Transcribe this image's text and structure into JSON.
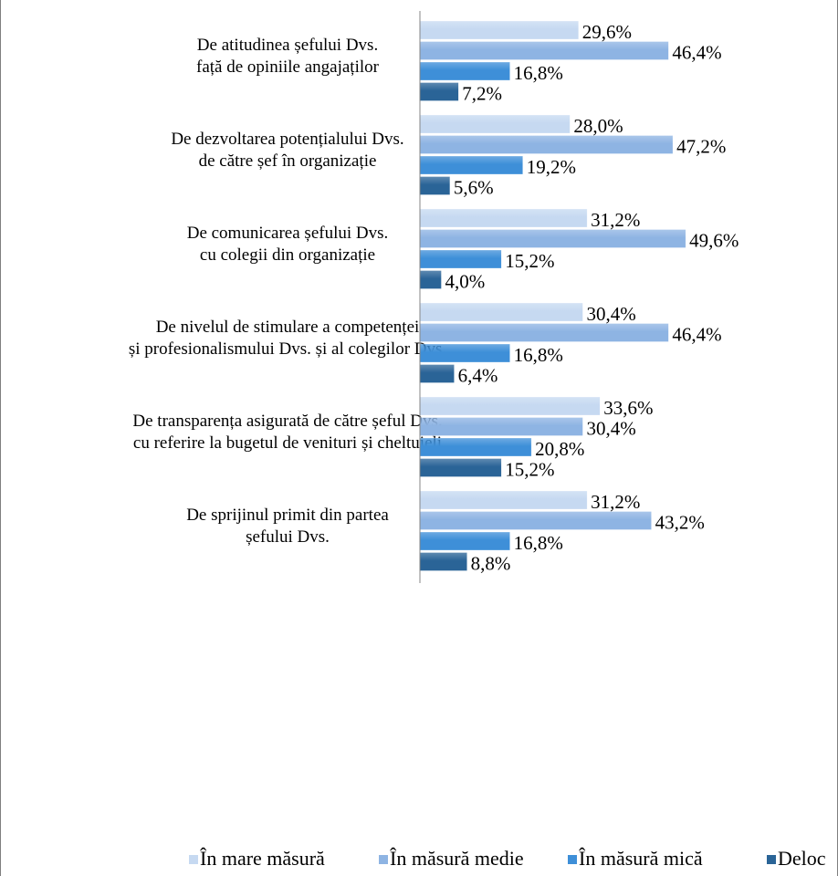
{
  "chart_data": {
    "type": "bar",
    "orientation": "horizontal",
    "categories": [
      [
        "De atitudinea șefului Dvs.",
        "față de opiniile angajaților"
      ],
      [
        "De dezvoltarea potențialului Dvs.",
        "de către șef în organizație"
      ],
      [
        "De comunicarea șefului Dvs.",
        "cu colegii din organizație"
      ],
      [
        "De nivelul de stimulare a competenței",
        "și profesionalismului Dvs. și al colegilor Dvs."
      ],
      [
        "De transparența asigurată de către șeful Dvs.",
        "cu referire la bugetul de venituri și cheltuieli"
      ],
      [
        "De sprijinul primit din partea",
        "șefului Dvs."
      ]
    ],
    "series": [
      {
        "name": "În mare măsură",
        "color": "#c6d9f1",
        "values": [
          29.6,
          28.0,
          31.2,
          30.4,
          33.6,
          31.2
        ],
        "labels": [
          "29,6%",
          "28,0%",
          "31,2%",
          "30,4%",
          "33,6%",
          "31,2%"
        ]
      },
      {
        "name": "În măsură medie",
        "color": "#8eb4e3",
        "values": [
          46.4,
          47.2,
          49.6,
          46.4,
          30.4,
          43.2
        ],
        "labels": [
          "46,4%",
          "47,2%",
          "49,6%",
          "46,4%",
          "30,4%",
          "43,2%"
        ]
      },
      {
        "name": "În măsură mică",
        "color": "#3e8fd8",
        "values": [
          16.8,
          19.2,
          15.2,
          16.8,
          20.8,
          16.8
        ],
        "labels": [
          "16,8%",
          "19,2%",
          "15,2%",
          "16,8%",
          "20,8%",
          "16,8%"
        ]
      },
      {
        "name": "Deloc",
        "color": "#2a6497",
        "values": [
          7.2,
          5.6,
          4.0,
          6.4,
          15.2,
          8.8
        ],
        "labels": [
          "7,2%",
          "5,6%",
          "4,0%",
          "6,4%",
          "15,2%",
          "8,8%"
        ]
      }
    ],
    "xlim": [
      0,
      100
    ],
    "grid": false,
    "legend_position": "bottom"
  }
}
